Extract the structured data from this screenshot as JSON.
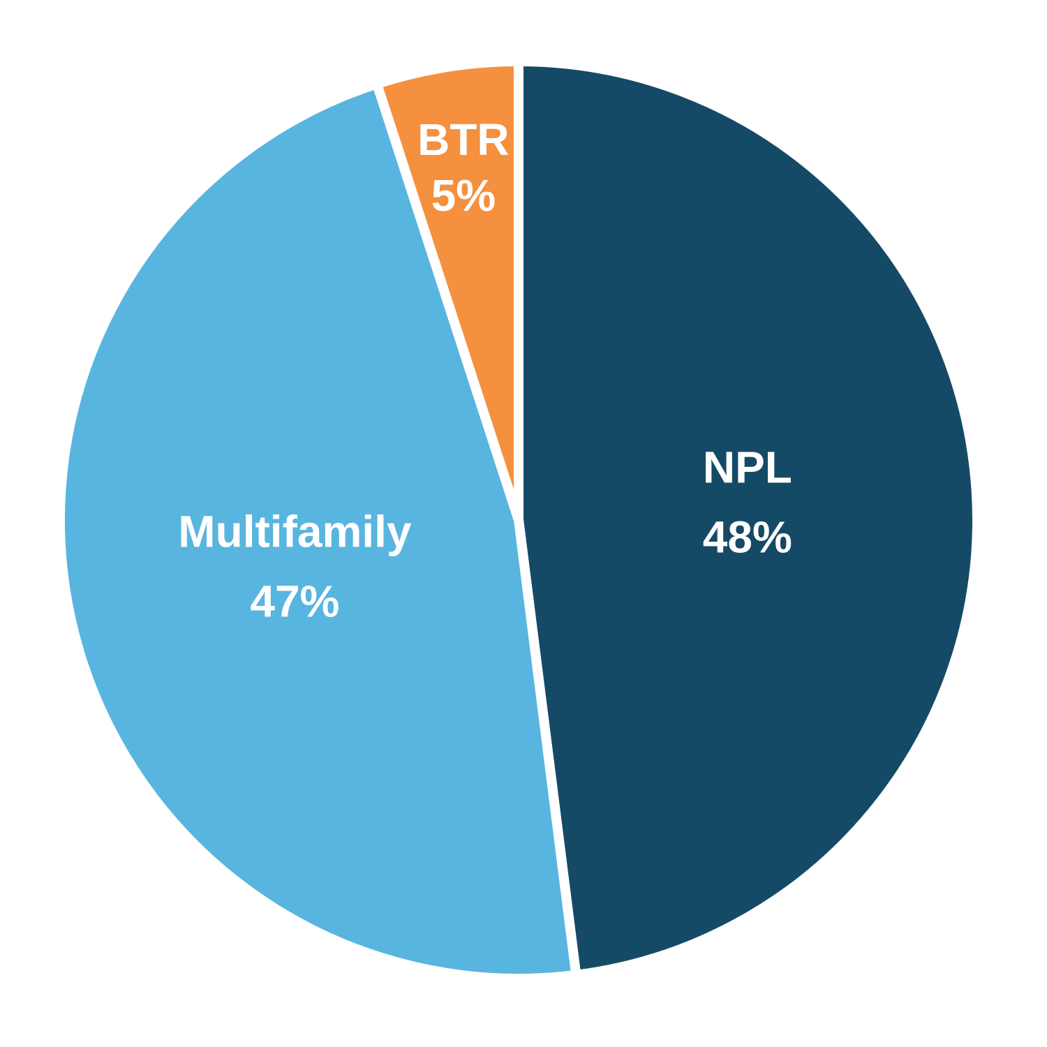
{
  "chart_data": {
    "type": "pie",
    "categories": [
      "NPL",
      "Multifamily",
      "BTR"
    ],
    "values": [
      48,
      47,
      5
    ],
    "value_labels": [
      "48%",
      "47%",
      "5%"
    ],
    "colors": [
      "#154a66",
      "#58b5df",
      "#f5903e"
    ]
  }
}
